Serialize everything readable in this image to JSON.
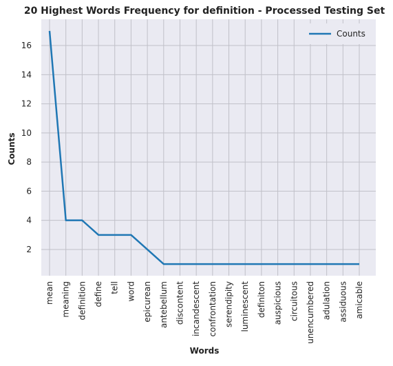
{
  "chart_data": {
    "type": "line",
    "title": "20 Highest Words Frequency for definition - Processed Testing Set",
    "xlabel": "Words",
    "ylabel": "Counts",
    "categories": [
      "mean",
      "meaning",
      "definition",
      "define",
      "tell",
      "word",
      "epicurean",
      "antebellum",
      "discontent",
      "incandescent",
      "confrontation",
      "serendipity",
      "luminescent",
      "definiton",
      "auspicious",
      "circuitous",
      "unencumbered",
      "adulation",
      "assiduous",
      "amicable"
    ],
    "series": [
      {
        "name": "Counts",
        "values": [
          17,
          4,
          4,
          3,
          3,
          3,
          2,
          1,
          1,
          1,
          1,
          1,
          1,
          1,
          1,
          1,
          1,
          1,
          1,
          1
        ],
        "color": "#1f77b4"
      }
    ],
    "ylim": [
      0.2,
      17.8
    ],
    "yticks": [
      2,
      4,
      6,
      8,
      10,
      12,
      14,
      16
    ],
    "grid": true,
    "legend_position": "top-right",
    "background_color": "#eaeaf2",
    "grid_color": "#c0c0c8"
  }
}
